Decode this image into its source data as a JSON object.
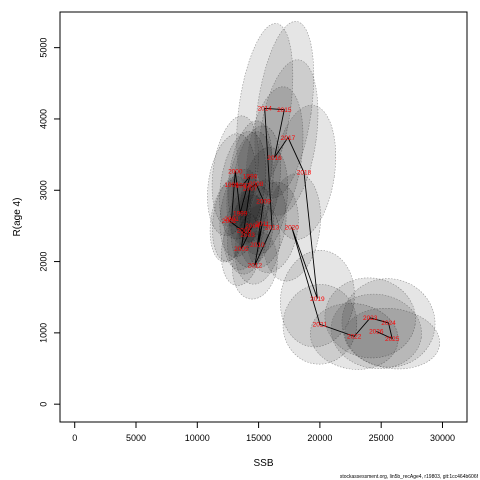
{
  "chart_data": {
    "type": "scatter",
    "title": "",
    "xlabel": "SSB",
    "ylabel": "R(age 4)",
    "xlim": [
      -1200,
      32000
    ],
    "ylim": [
      -250,
      5500
    ],
    "xticks": [
      0,
      5000,
      10000,
      15000,
      20000,
      25000,
      30000
    ],
    "yticks": [
      0,
      1000,
      2000,
      3000,
      4000,
      5000
    ],
    "grid": false,
    "legend": "none",
    "colors": {
      "line": "#000000",
      "labels": "#ff0000",
      "ellipse_fill": "#000000",
      "ellipse_stroke": "#555555"
    },
    "footnote": "stockassessment.org, lin5b_recAge4, r19803, git:1cc464b606f",
    "points": [
      {
        "year": "1996",
        "ssb": 12800,
        "r": 3080
      },
      {
        "year": "1997",
        "ssb": 13700,
        "r": 3070
      },
      {
        "year": "1998",
        "ssb": 14300,
        "r": 3200
      },
      {
        "year": "1999",
        "ssb": 13500,
        "r": 2680
      },
      {
        "year": "2000",
        "ssb": 13100,
        "r": 3270
      },
      {
        "year": "2001",
        "ssb": 12800,
        "r": 2600
      },
      {
        "year": "2002",
        "ssb": 12600,
        "r": 2570
      },
      {
        "year": "2003",
        "ssb": 14100,
        "r": 2380
      },
      {
        "year": "2004",
        "ssb": 14500,
        "r": 2500
      },
      {
        "year": "2005",
        "ssb": 13600,
        "r": 2180
      },
      {
        "year": "2006",
        "ssb": 13800,
        "r": 2440
      },
      {
        "year": "2007",
        "ssb": 14300,
        "r": 3030
      },
      {
        "year": "2008",
        "ssb": 14800,
        "r": 3090
      },
      {
        "year": "2009",
        "ssb": 15400,
        "r": 2850
      },
      {
        "year": "2010",
        "ssb": 14900,
        "r": 2240
      },
      {
        "year": "2011",
        "ssb": 15300,
        "r": 2530
      },
      {
        "year": "2012",
        "ssb": 14700,
        "r": 1950
      },
      {
        "year": "2013",
        "ssb": 16100,
        "r": 2480
      },
      {
        "year": "2014",
        "ssb": 15500,
        "r": 4150
      },
      {
        "year": "2015",
        "ssb": 17100,
        "r": 4130
      },
      {
        "year": "2016",
        "ssb": 16300,
        "r": 3460
      },
      {
        "year": "2017",
        "ssb": 17400,
        "r": 3740
      },
      {
        "year": "2018",
        "ssb": 18700,
        "r": 3250
      },
      {
        "year": "2019",
        "ssb": 19800,
        "r": 1480
      },
      {
        "year": "2020",
        "ssb": 17700,
        "r": 2480
      },
      {
        "year": "2021",
        "ssb": 20000,
        "r": 1120
      },
      {
        "year": "2022",
        "ssb": 22800,
        "r": 950
      },
      {
        "year": "2023",
        "ssb": 24100,
        "r": 1210
      },
      {
        "year": "2024",
        "ssb": 25600,
        "r": 1140
      },
      {
        "year": "2025",
        "ssb": 25900,
        "r": 920
      },
      {
        "year": "2026",
        "ssb": 24600,
        "r": 1020
      }
    ],
    "uncertainty": [
      {
        "ssb": 12800,
        "r": 3080,
        "ssb_halfwidth": 1900,
        "r_halfwidth": 720
      },
      {
        "ssb": 13700,
        "r": 3070,
        "ssb_halfwidth": 1800,
        "r_halfwidth": 760
      },
      {
        "ssb": 14300,
        "r": 3200,
        "ssb_halfwidth": 1700,
        "r_halfwidth": 780
      },
      {
        "ssb": 13500,
        "r": 2680,
        "ssb_halfwidth": 1600,
        "r_halfwidth": 620
      },
      {
        "ssb": 13100,
        "r": 3270,
        "ssb_halfwidth": 1800,
        "r_halfwidth": 780
      },
      {
        "ssb": 12800,
        "r": 2600,
        "ssb_halfwidth": 1500,
        "r_halfwidth": 600
      },
      {
        "ssb": 12600,
        "r": 2570,
        "ssb_halfwidth": 1500,
        "r_halfwidth": 580
      },
      {
        "ssb": 14100,
        "r": 2380,
        "ssb_halfwidth": 1600,
        "r_halfwidth": 560
      },
      {
        "ssb": 14500,
        "r": 2500,
        "ssb_halfwidth": 1700,
        "r_halfwidth": 580
      },
      {
        "ssb": 13600,
        "r": 2180,
        "ssb_halfwidth": 1600,
        "r_halfwidth": 520
      },
      {
        "ssb": 13800,
        "r": 2440,
        "ssb_halfwidth": 1600,
        "r_halfwidth": 560
      },
      {
        "ssb": 14300,
        "r": 3030,
        "ssb_halfwidth": 1800,
        "r_halfwidth": 800
      },
      {
        "ssb": 14800,
        "r": 3090,
        "ssb_halfwidth": 1900,
        "r_halfwidth": 820
      },
      {
        "ssb": 15400,
        "r": 2850,
        "ssb_halfwidth": 1900,
        "r_halfwidth": 760
      },
      {
        "ssb": 14900,
        "r": 2240,
        "ssb_halfwidth": 1800,
        "r_halfwidth": 560
      },
      {
        "ssb": 15300,
        "r": 2530,
        "ssb_halfwidth": 1900,
        "r_halfwidth": 620
      },
      {
        "ssb": 14700,
        "r": 1950,
        "ssb_halfwidth": 1800,
        "r_halfwidth": 480
      },
      {
        "ssb": 16100,
        "r": 2480,
        "ssb_halfwidth": 2100,
        "r_halfwidth": 640
      },
      {
        "ssb": 15500,
        "r": 4150,
        "ssb_halfwidth": 2100,
        "r_halfwidth": 1200
      },
      {
        "ssb": 17100,
        "r": 4130,
        "ssb_halfwidth": 2200,
        "r_halfwidth": 1250
      },
      {
        "ssb": 16300,
        "r": 3460,
        "ssb_halfwidth": 2200,
        "r_halfwidth": 1000
      },
      {
        "ssb": 17400,
        "r": 3740,
        "ssb_halfwidth": 2300,
        "r_halfwidth": 1100
      },
      {
        "ssb": 18700,
        "r": 3250,
        "ssb_halfwidth": 2500,
        "r_halfwidth": 950
      },
      {
        "ssb": 19800,
        "r": 1480,
        "ssb_halfwidth": 3000,
        "r_halfwidth": 680
      },
      {
        "ssb": 17700,
        "r": 2480,
        "ssb_halfwidth": 2300,
        "r_halfwidth": 760
      },
      {
        "ssb": 20000,
        "r": 1120,
        "ssb_halfwidth": 3000,
        "r_halfwidth": 560
      },
      {
        "ssb": 22800,
        "r": 950,
        "ssb_halfwidth": 3600,
        "r_halfwidth": 460
      },
      {
        "ssb": 24100,
        "r": 1210,
        "ssb_halfwidth": 3700,
        "r_halfwidth": 560
      },
      {
        "ssb": 25600,
        "r": 1140,
        "ssb_halfwidth": 3800,
        "r_halfwidth": 620
      },
      {
        "ssb": 25900,
        "r": 920,
        "ssb_halfwidth": 3900,
        "r_halfwidth": 420
      },
      {
        "ssb": 24600,
        "r": 1020,
        "ssb_halfwidth": 3700,
        "r_halfwidth": 520
      }
    ]
  }
}
